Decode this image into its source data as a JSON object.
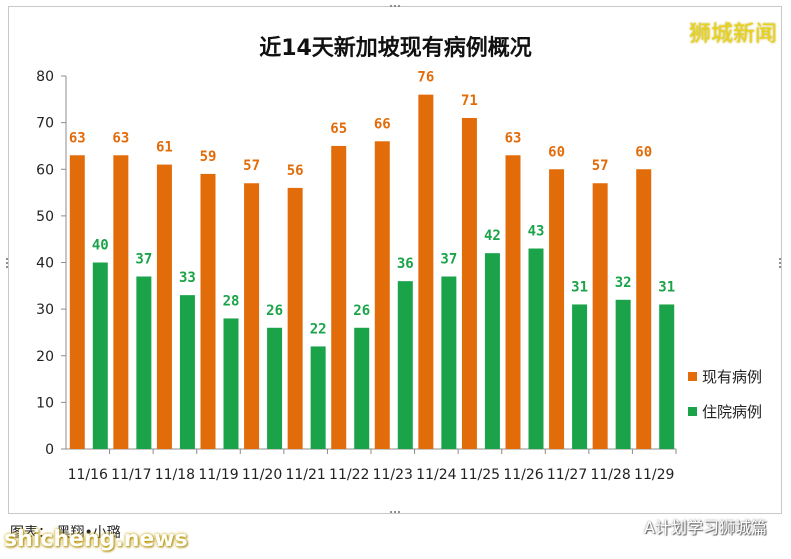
{
  "branding": {
    "top_right": "狮城新闻",
    "bottom_left": "shicheng.news",
    "bottom_right": "A计划学习狮城篇",
    "source": "图表： 黑翔•小璐"
  },
  "colors": {
    "existing": "#E36C0A",
    "hospitalized": "#1BA34A",
    "brand": "#E8D21A"
  },
  "chart_data": {
    "type": "bar",
    "title": "近14天新加坡现有病例概况",
    "categories": [
      "11/16",
      "11/17",
      "11/18",
      "11/19",
      "11/20",
      "11/21",
      "11/22",
      "11/23",
      "11/24",
      "11/25",
      "11/26",
      "11/27",
      "11/28",
      "11/29"
    ],
    "series": [
      {
        "name": "现有病例",
        "color": "#E36C0A",
        "values": [
          63,
          63,
          61,
          59,
          57,
          56,
          65,
          66,
          76,
          71,
          63,
          60,
          57,
          60
        ]
      },
      {
        "name": "住院病例",
        "color": "#1BA34A",
        "values": [
          40,
          37,
          33,
          28,
          26,
          22,
          26,
          36,
          37,
          42,
          43,
          31,
          32,
          31
        ]
      }
    ],
    "ylim": [
      0,
      80
    ],
    "yticks": [
      0,
      10,
      20,
      30,
      40,
      50,
      60,
      70,
      80
    ],
    "xlabel": "",
    "ylabel": "",
    "grid": false,
    "legend": "right"
  }
}
